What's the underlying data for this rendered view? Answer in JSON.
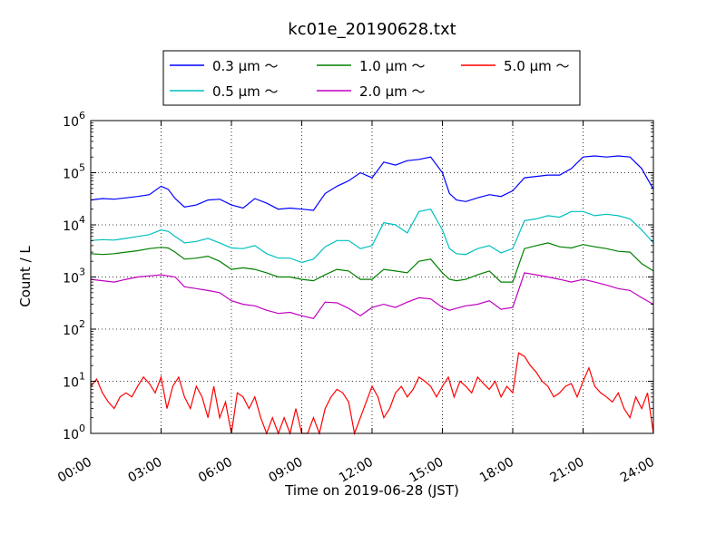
{
  "chart_data": {
    "type": "line",
    "title": "kc01e_20190628.txt",
    "xlabel": "Time on 2019-06-28 (JST)",
    "ylabel": "Count / L",
    "yscale": "log",
    "ylim": [
      1,
      1000000
    ],
    "xlim": [
      0,
      24
    ],
    "grid": true,
    "legend_position": "top-center",
    "x_ticks": [
      {
        "value": 0,
        "label": "00:00"
      },
      {
        "value": 3,
        "label": "03:00"
      },
      {
        "value": 6,
        "label": "06:00"
      },
      {
        "value": 9,
        "label": "09:00"
      },
      {
        "value": 12,
        "label": "12:00"
      },
      {
        "value": 15,
        "label": "15:00"
      },
      {
        "value": 18,
        "label": "18:00"
      },
      {
        "value": 21,
        "label": "21:00"
      },
      {
        "value": 24,
        "label": "24:00"
      }
    ],
    "y_ticks": [
      {
        "value": 1,
        "base": "10",
        "exp": "0"
      },
      {
        "value": 10,
        "base": "10",
        "exp": "1"
      },
      {
        "value": 100,
        "base": "10",
        "exp": "2"
      },
      {
        "value": 1000,
        "base": "10",
        "exp": "3"
      },
      {
        "value": 10000,
        "base": "10",
        "exp": "4"
      },
      {
        "value": 100000,
        "base": "10",
        "exp": "5"
      },
      {
        "value": 1000000,
        "base": "10",
        "exp": "6"
      }
    ],
    "series": [
      {
        "name": "0.3 μm ～",
        "color": "#0000ff",
        "points": [
          [
            0,
            30000
          ],
          [
            0.5,
            32000
          ],
          [
            1,
            31000
          ],
          [
            1.5,
            33000
          ],
          [
            2,
            35000
          ],
          [
            2.5,
            38000
          ],
          [
            3,
            55000
          ],
          [
            3.3,
            48000
          ],
          [
            3.6,
            32000
          ],
          [
            4,
            22000
          ],
          [
            4.5,
            24000
          ],
          [
            5,
            30000
          ],
          [
            5.5,
            31000
          ],
          [
            6,
            24000
          ],
          [
            6.5,
            21000
          ],
          [
            7,
            32000
          ],
          [
            7.5,
            26000
          ],
          [
            8,
            20000
          ],
          [
            8.5,
            21000
          ],
          [
            9,
            20000
          ],
          [
            9.5,
            19000
          ],
          [
            10,
            40000
          ],
          [
            10.5,
            55000
          ],
          [
            11,
            70000
          ],
          [
            11.5,
            100000
          ],
          [
            12,
            80000
          ],
          [
            12.5,
            160000
          ],
          [
            13,
            140000
          ],
          [
            13.5,
            170000
          ],
          [
            14,
            180000
          ],
          [
            14.5,
            200000
          ],
          [
            15,
            100000
          ],
          [
            15.3,
            40000
          ],
          [
            15.6,
            30000
          ],
          [
            16,
            28000
          ],
          [
            16.5,
            33000
          ],
          [
            17,
            38000
          ],
          [
            17.5,
            35000
          ],
          [
            18,
            45000
          ],
          [
            18.5,
            80000
          ],
          [
            19,
            85000
          ],
          [
            19.5,
            90000
          ],
          [
            20,
            90000
          ],
          [
            20.5,
            120000
          ],
          [
            21,
            200000
          ],
          [
            21.5,
            210000
          ],
          [
            22,
            200000
          ],
          [
            22.5,
            210000
          ],
          [
            23,
            200000
          ],
          [
            23.5,
            120000
          ],
          [
            24,
            48000
          ]
        ]
      },
      {
        "name": "0.5 μm ～",
        "color": "#00bfbf",
        "points": [
          [
            0,
            5000
          ],
          [
            0.5,
            5200
          ],
          [
            1,
            5100
          ],
          [
            1.5,
            5500
          ],
          [
            2,
            6000
          ],
          [
            2.5,
            6500
          ],
          [
            3,
            8000
          ],
          [
            3.3,
            7500
          ],
          [
            3.6,
            6000
          ],
          [
            4,
            4500
          ],
          [
            4.5,
            4800
          ],
          [
            5,
            5500
          ],
          [
            5.5,
            4500
          ],
          [
            6,
            3600
          ],
          [
            6.5,
            3500
          ],
          [
            7,
            4000
          ],
          [
            7.5,
            2800
          ],
          [
            8,
            2300
          ],
          [
            8.5,
            2300
          ],
          [
            9,
            1900
          ],
          [
            9.5,
            2200
          ],
          [
            10,
            3800
          ],
          [
            10.5,
            5000
          ],
          [
            11,
            5000
          ],
          [
            11.5,
            3500
          ],
          [
            12,
            4000
          ],
          [
            12.5,
            11000
          ],
          [
            13,
            10000
          ],
          [
            13.5,
            7000
          ],
          [
            14,
            18000
          ],
          [
            14.5,
            20000
          ],
          [
            15,
            8000
          ],
          [
            15.3,
            3500
          ],
          [
            15.6,
            2800
          ],
          [
            16,
            2700
          ],
          [
            16.5,
            3500
          ],
          [
            17,
            4000
          ],
          [
            17.5,
            2900
          ],
          [
            18,
            3500
          ],
          [
            18.5,
            12000
          ],
          [
            19,
            13000
          ],
          [
            19.5,
            15000
          ],
          [
            20,
            14000
          ],
          [
            20.5,
            18000
          ],
          [
            21,
            18000
          ],
          [
            21.5,
            15000
          ],
          [
            22,
            16000
          ],
          [
            22.5,
            15000
          ],
          [
            23,
            13000
          ],
          [
            23.5,
            8000
          ],
          [
            24,
            4500
          ]
        ]
      },
      {
        "name": "1.0 μm ～",
        "color": "#008000",
        "points": [
          [
            0,
            2800
          ],
          [
            0.5,
            2700
          ],
          [
            1,
            2800
          ],
          [
            1.5,
            3000
          ],
          [
            2,
            3200
          ],
          [
            2.5,
            3500
          ],
          [
            3,
            3700
          ],
          [
            3.3,
            3600
          ],
          [
            3.6,
            3000
          ],
          [
            4,
            2200
          ],
          [
            4.5,
            2300
          ],
          [
            5,
            2500
          ],
          [
            5.5,
            2000
          ],
          [
            6,
            1400
          ],
          [
            6.5,
            1500
          ],
          [
            7,
            1400
          ],
          [
            7.5,
            1200
          ],
          [
            8,
            1000
          ],
          [
            8.5,
            1000
          ],
          [
            9,
            900
          ],
          [
            9.5,
            850
          ],
          [
            10,
            1100
          ],
          [
            10.5,
            1400
          ],
          [
            11,
            1300
          ],
          [
            11.5,
            900
          ],
          [
            12,
            900
          ],
          [
            12.5,
            1400
          ],
          [
            13,
            1300
          ],
          [
            13.5,
            1200
          ],
          [
            14,
            2000
          ],
          [
            14.5,
            2200
          ],
          [
            15,
            1200
          ],
          [
            15.3,
            900
          ],
          [
            15.6,
            850
          ],
          [
            16,
            900
          ],
          [
            16.5,
            1100
          ],
          [
            17,
            1300
          ],
          [
            17.5,
            800
          ],
          [
            18,
            800
          ],
          [
            18.5,
            3500
          ],
          [
            19,
            4000
          ],
          [
            19.5,
            4500
          ],
          [
            20,
            3800
          ],
          [
            20.5,
            3600
          ],
          [
            21,
            4200
          ],
          [
            21.5,
            3800
          ],
          [
            22,
            3500
          ],
          [
            22.5,
            3100
          ],
          [
            23,
            3000
          ],
          [
            23.5,
            1800
          ],
          [
            24,
            1300
          ]
        ]
      },
      {
        "name": "2.0 μm ～",
        "color": "#bf00bf",
        "points": [
          [
            0,
            900
          ],
          [
            0.5,
            850
          ],
          [
            1,
            800
          ],
          [
            1.5,
            900
          ],
          [
            2,
            1000
          ],
          [
            2.5,
            1050
          ],
          [
            3,
            1100
          ],
          [
            3.3,
            1050
          ],
          [
            3.6,
            1000
          ],
          [
            4,
            650
          ],
          [
            4.5,
            600
          ],
          [
            5,
            550
          ],
          [
            5.5,
            500
          ],
          [
            6,
            350
          ],
          [
            6.5,
            300
          ],
          [
            7,
            280
          ],
          [
            7.5,
            230
          ],
          [
            8,
            200
          ],
          [
            8.5,
            210
          ],
          [
            9,
            180
          ],
          [
            9.5,
            160
          ],
          [
            10,
            330
          ],
          [
            10.5,
            320
          ],
          [
            11,
            250
          ],
          [
            11.5,
            180
          ],
          [
            12,
            260
          ],
          [
            12.5,
            300
          ],
          [
            13,
            260
          ],
          [
            13.5,
            330
          ],
          [
            14,
            400
          ],
          [
            14.5,
            380
          ],
          [
            15,
            260
          ],
          [
            15.3,
            230
          ],
          [
            15.6,
            250
          ],
          [
            16,
            280
          ],
          [
            16.5,
            300
          ],
          [
            17,
            350
          ],
          [
            17.5,
            240
          ],
          [
            18,
            260
          ],
          [
            18.5,
            1200
          ],
          [
            19,
            1100
          ],
          [
            19.5,
            1000
          ],
          [
            20,
            900
          ],
          [
            20.5,
            800
          ],
          [
            21,
            900
          ],
          [
            21.5,
            800
          ],
          [
            22,
            700
          ],
          [
            22.5,
            600
          ],
          [
            23,
            550
          ],
          [
            23.5,
            400
          ],
          [
            24,
            300
          ]
        ]
      },
      {
        "name": "5.0 μm ～",
        "color": "#ff0000",
        "points": [
          [
            0,
            8
          ],
          [
            0.25,
            11
          ],
          [
            0.5,
            6
          ],
          [
            0.75,
            4
          ],
          [
            1,
            3
          ],
          [
            1.25,
            5
          ],
          [
            1.5,
            6
          ],
          [
            1.75,
            5
          ],
          [
            2,
            8
          ],
          [
            2.25,
            12
          ],
          [
            2.5,
            9
          ],
          [
            2.75,
            6
          ],
          [
            3,
            12
          ],
          [
            3.25,
            3
          ],
          [
            3.5,
            8
          ],
          [
            3.75,
            12
          ],
          [
            4,
            5
          ],
          [
            4.25,
            3
          ],
          [
            4.5,
            8
          ],
          [
            4.75,
            5
          ],
          [
            5,
            2
          ],
          [
            5.25,
            8
          ],
          [
            5.5,
            2
          ],
          [
            5.75,
            4
          ],
          [
            6,
            1
          ],
          [
            6.25,
            6
          ],
          [
            6.5,
            5
          ],
          [
            6.75,
            3
          ],
          [
            7,
            5
          ],
          [
            7.25,
            2
          ],
          [
            7.5,
            1
          ],
          [
            7.75,
            2
          ],
          [
            8,
            1
          ],
          [
            8.25,
            2
          ],
          [
            8.5,
            1
          ],
          [
            8.75,
            3
          ],
          [
            9,
            1
          ],
          [
            9.25,
            1
          ],
          [
            9.5,
            2
          ],
          [
            9.75,
            1
          ],
          [
            10,
            3
          ],
          [
            10.25,
            5
          ],
          [
            10.5,
            7
          ],
          [
            10.75,
            6
          ],
          [
            11,
            4
          ],
          [
            11.25,
            1
          ],
          [
            11.5,
            2
          ],
          [
            11.75,
            4
          ],
          [
            12,
            8
          ],
          [
            12.25,
            5
          ],
          [
            12.5,
            2
          ],
          [
            12.75,
            3
          ],
          [
            13,
            6
          ],
          [
            13.25,
            8
          ],
          [
            13.5,
            5
          ],
          [
            13.75,
            7
          ],
          [
            14,
            12
          ],
          [
            14.25,
            10
          ],
          [
            14.5,
            8
          ],
          [
            14.75,
            5
          ],
          [
            15,
            8
          ],
          [
            15.25,
            12
          ],
          [
            15.5,
            5
          ],
          [
            15.75,
            10
          ],
          [
            16,
            8
          ],
          [
            16.25,
            6
          ],
          [
            16.5,
            12
          ],
          [
            16.75,
            9
          ],
          [
            17,
            7
          ],
          [
            17.25,
            10
          ],
          [
            17.5,
            5
          ],
          [
            17.75,
            8
          ],
          [
            18,
            6
          ],
          [
            18.25,
            35
          ],
          [
            18.5,
            30
          ],
          [
            18.75,
            20
          ],
          [
            19,
            15
          ],
          [
            19.25,
            10
          ],
          [
            19.5,
            8
          ],
          [
            19.75,
            5
          ],
          [
            20,
            6
          ],
          [
            20.25,
            8
          ],
          [
            20.5,
            9
          ],
          [
            20.75,
            5
          ],
          [
            21,
            10
          ],
          [
            21.25,
            18
          ],
          [
            21.5,
            8
          ],
          [
            21.75,
            6
          ],
          [
            22,
            5
          ],
          [
            22.25,
            4
          ],
          [
            22.5,
            6
          ],
          [
            22.75,
            3
          ],
          [
            23,
            2
          ],
          [
            23.25,
            5
          ],
          [
            23.5,
            3
          ],
          [
            23.75,
            6
          ],
          [
            24,
            1
          ]
        ]
      }
    ]
  }
}
